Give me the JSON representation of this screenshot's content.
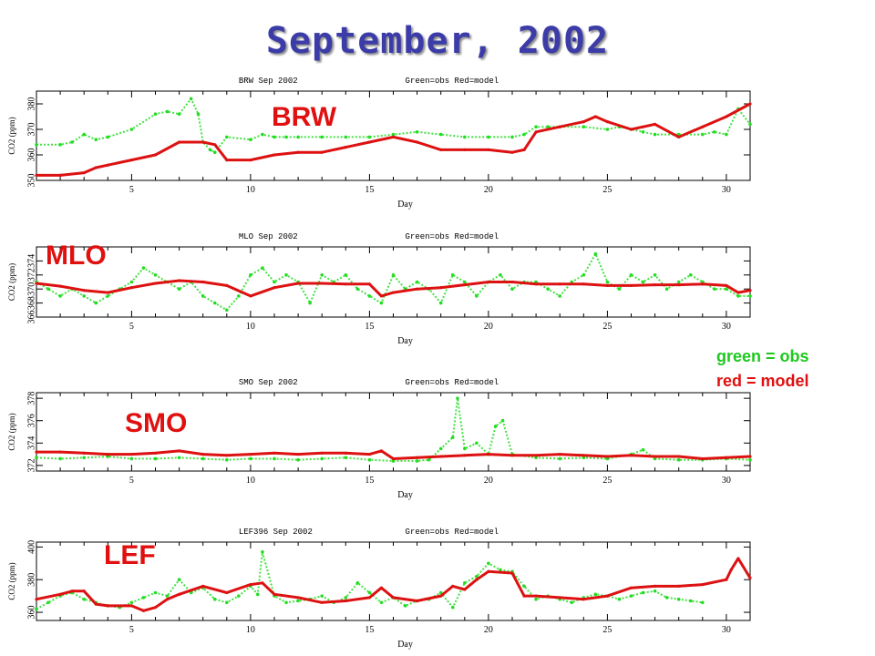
{
  "title": "September, 2002",
  "legend": {
    "obs": "green = obs",
    "model": "red = model"
  },
  "colors": {
    "obs": "#22dd22",
    "model": "#dd1111",
    "title": "#3c3ca8"
  },
  "chart_data": [
    {
      "type": "scatter",
      "station": "BRW",
      "panel_title": "BRW Sep 2002",
      "panel_legend": "Green=obs Red=model",
      "xlabel": "Day",
      "ylabel": "CO2 (ppm)",
      "xlim": [
        1,
        31
      ],
      "xticks": [
        5,
        10,
        15,
        20,
        25,
        30
      ],
      "ylim": [
        350,
        385
      ],
      "yticks": [
        350,
        360,
        370,
        380
      ],
      "series": [
        {
          "name": "obs",
          "x": [
            1,
            2,
            2.5,
            3,
            3.5,
            4,
            5,
            6,
            6.5,
            7,
            7.5,
            7.8,
            8,
            8.3,
            8.5,
            9,
            10,
            10.5,
            11,
            11.5,
            12,
            13,
            14,
            15,
            16,
            17,
            18,
            19,
            20,
            21,
            21.5,
            22,
            22.5,
            23,
            24,
            25,
            25.5,
            26,
            26.5,
            27,
            28,
            29,
            29.5,
            30,
            30.5,
            31
          ],
          "y": [
            364,
            364,
            365,
            368,
            366,
            367,
            370,
            376,
            377,
            376,
            382,
            376,
            365,
            362,
            361,
            367,
            366,
            368,
            367,
            367,
            367,
            367,
            367,
            367,
            368,
            369,
            368,
            367,
            367,
            367,
            368,
            371,
            371,
            371,
            371,
            370,
            371,
            370,
            369,
            368,
            368,
            368,
            369,
            368,
            378,
            372
          ]
        },
        {
          "name": "model",
          "x": [
            1,
            2,
            3,
            3.5,
            4,
            5,
            6,
            7,
            8,
            8.5,
            9,
            10,
            11,
            12,
            13,
            14,
            15,
            16,
            17,
            18,
            19,
            20,
            21,
            21.5,
            22,
            23,
            24,
            24.5,
            25,
            26,
            26.5,
            27,
            28,
            29,
            30,
            31
          ],
          "y": [
            352,
            352,
            353,
            355,
            356,
            358,
            360,
            365,
            365,
            364,
            358,
            358,
            360,
            361,
            361,
            363,
            365,
            367,
            365,
            362,
            362,
            362,
            361,
            362,
            369,
            371,
            373,
            375,
            373,
            370,
            371,
            372,
            367,
            371,
            375,
            380
          ]
        }
      ]
    },
    {
      "type": "scatter",
      "station": "MLO",
      "panel_title": "MLO Sep 2002",
      "panel_legend": "Green=obs Red=model",
      "xlabel": "Day",
      "ylabel": "CO2 (ppm)",
      "xlim": [
        1,
        31
      ],
      "xticks": [
        5,
        10,
        15,
        20,
        25,
        30
      ],
      "ylim": [
        366,
        376
      ],
      "yticks": [
        366,
        368,
        370,
        372,
        374
      ],
      "series": [
        {
          "name": "obs",
          "x": [
            1,
            1.5,
            2,
            2.5,
            3,
            3.5,
            4,
            4.5,
            5,
            5.5,
            6,
            6.5,
            7,
            7.5,
            8,
            8.5,
            9,
            9.5,
            10,
            10.5,
            11,
            11.5,
            12,
            12.5,
            13,
            13.5,
            14,
            14.5,
            15,
            15.5,
            16,
            16.5,
            17,
            17.5,
            18,
            18.5,
            19,
            19.5,
            20,
            20.5,
            21,
            21.5,
            22,
            22.5,
            23,
            23.5,
            24,
            24.5,
            25,
            25.5,
            26,
            26.5,
            27,
            27.5,
            28,
            28.5,
            29,
            29.5,
            30,
            30.5,
            31
          ],
          "y": [
            371,
            370,
            369,
            370,
            369,
            368,
            369,
            370,
            371,
            373,
            372,
            371,
            370,
            371,
            369,
            368,
            367,
            369,
            372,
            373,
            371,
            372,
            371,
            368,
            372,
            371,
            372,
            370,
            369,
            368,
            372,
            370,
            371,
            370,
            368,
            372,
            371,
            369,
            371,
            372,
            370,
            371,
            371,
            370,
            369,
            371,
            372,
            375,
            371,
            370,
            372,
            371,
            372,
            370,
            371,
            372,
            371,
            370,
            370,
            369,
            369
          ]
        },
        {
          "name": "model",
          "x": [
            1,
            2,
            3,
            4,
            5,
            6,
            7,
            8,
            9,
            10,
            11,
            12,
            13,
            14,
            15,
            15.5,
            16,
            17,
            18,
            19,
            20,
            21,
            22,
            23,
            24,
            25,
            26,
            27,
            28,
            29,
            30,
            30.5,
            31
          ],
          "y": [
            370.8,
            370.4,
            369.8,
            369.5,
            370.2,
            370.8,
            371.2,
            371,
            370.5,
            369,
            370.2,
            370.8,
            370.8,
            370.7,
            370.7,
            369,
            369.5,
            370,
            370.2,
            370.6,
            371,
            371,
            370.7,
            370.7,
            370.7,
            370.5,
            370.5,
            370.6,
            370.6,
            370.7,
            370.5,
            369.5,
            369.8
          ]
        }
      ]
    },
    {
      "type": "scatter",
      "station": "SMO",
      "panel_title": "SMO Sep 2002",
      "panel_legend": "Green=obs Red=model",
      "xlabel": "Day",
      "ylabel": "CO2 (ppm)",
      "xlim": [
        1,
        31
      ],
      "xticks": [
        5,
        10,
        15,
        20,
        25,
        30
      ],
      "ylim": [
        371.5,
        378.5
      ],
      "yticks": [
        372,
        374,
        376,
        378
      ],
      "series": [
        {
          "name": "obs",
          "x": [
            1,
            2,
            3,
            4,
            5,
            6,
            7,
            8,
            9,
            10,
            11,
            12,
            13,
            14,
            15,
            16,
            17,
            17.5,
            18,
            18.5,
            18.7,
            19,
            19.5,
            20,
            20.3,
            20.6,
            21,
            22,
            23,
            24,
            25,
            26,
            26.5,
            27,
            28,
            29,
            30,
            31
          ],
          "y": [
            372.7,
            372.6,
            372.7,
            372.8,
            372.6,
            372.6,
            372.7,
            372.6,
            372.5,
            372.6,
            372.6,
            372.5,
            372.6,
            372.7,
            372.5,
            372.4,
            372.4,
            372.5,
            373.5,
            374.5,
            378,
            373.5,
            374,
            373,
            375.5,
            376,
            373,
            372.7,
            372.6,
            372.7,
            372.6,
            373,
            373.4,
            372.6,
            372.5,
            372.5,
            372.6,
            372.5
          ]
        },
        {
          "name": "model",
          "x": [
            1,
            2,
            3,
            4,
            5,
            6,
            7,
            8,
            9,
            10,
            11,
            12,
            13,
            14,
            15,
            15.5,
            16,
            17,
            18,
            19,
            20,
            21,
            22,
            23,
            24,
            25,
            26,
            27,
            28,
            29,
            30,
            31
          ],
          "y": [
            373.2,
            373.2,
            373.1,
            373,
            373,
            373.1,
            373.3,
            373,
            372.9,
            373,
            373.1,
            373,
            373.1,
            373.1,
            373,
            373.3,
            372.6,
            372.7,
            372.8,
            372.9,
            373,
            372.9,
            372.9,
            373,
            372.9,
            372.8,
            372.9,
            372.8,
            372.8,
            372.6,
            372.7,
            372.8
          ]
        }
      ]
    },
    {
      "type": "scatter",
      "station": "LEF",
      "panel_title": "LEF396 Sep 2002",
      "panel_legend": "Green=obs Red=model",
      "xlabel": "Day",
      "ylabel": "CO2 (ppm)",
      "xlim": [
        1,
        31
      ],
      "xticks": [
        5,
        10,
        15,
        20,
        25,
        30
      ],
      "ylim": [
        355,
        403
      ],
      "yticks": [
        360,
        380,
        400
      ],
      "series": [
        {
          "name": "obs",
          "x": [
            1,
            1.5,
            2,
            2.5,
            3,
            3.5,
            4,
            4.5,
            5,
            5.5,
            6,
            6.5,
            7,
            7.5,
            8,
            8.5,
            9,
            9.5,
            10,
            10.3,
            10.5,
            11,
            11.5,
            12,
            12.5,
            13,
            13.5,
            14,
            14.5,
            15,
            15.5,
            16,
            16.5,
            17,
            17.5,
            18,
            18.5,
            19,
            19.5,
            20,
            20.5,
            21,
            21.5,
            22,
            22.5,
            23,
            23.5,
            24,
            24.5,
            25,
            25.5,
            26,
            26.5,
            27,
            27.5,
            28,
            28.5,
            29
          ],
          "y": [
            362,
            366,
            370,
            372,
            368,
            366,
            364,
            363,
            366,
            369,
            372,
            370,
            380,
            372,
            375,
            368,
            366,
            370,
            376,
            371,
            397,
            370,
            366,
            367,
            368,
            370,
            366,
            369,
            378,
            372,
            366,
            369,
            364,
            367,
            368,
            372,
            363,
            378,
            382,
            390,
            386,
            385,
            376,
            368,
            370,
            368,
            366,
            369,
            371,
            370,
            368,
            370,
            372,
            373,
            369,
            368,
            367,
            366
          ]
        },
        {
          "name": "model",
          "x": [
            1,
            2,
            2.5,
            3,
            3.5,
            4,
            5,
            5.5,
            6,
            6.5,
            7,
            8,
            9,
            10,
            10.5,
            11,
            12,
            13,
            14,
            15,
            15.5,
            16,
            17,
            18,
            18.5,
            19,
            19.5,
            20,
            21,
            21.5,
            22,
            23,
            24,
            25,
            26,
            27,
            28,
            29,
            30,
            30.2,
            30.5,
            31
          ],
          "y": [
            368,
            371,
            373,
            373,
            365,
            364,
            364,
            361,
            363,
            368,
            371,
            376,
            372,
            377,
            378,
            371,
            369,
            366,
            367,
            369,
            375,
            369,
            367,
            370,
            376,
            374,
            380,
            385,
            384,
            370,
            370,
            369,
            368,
            370,
            375,
            376,
            376,
            377,
            380,
            386,
            393,
            381
          ]
        }
      ]
    }
  ]
}
